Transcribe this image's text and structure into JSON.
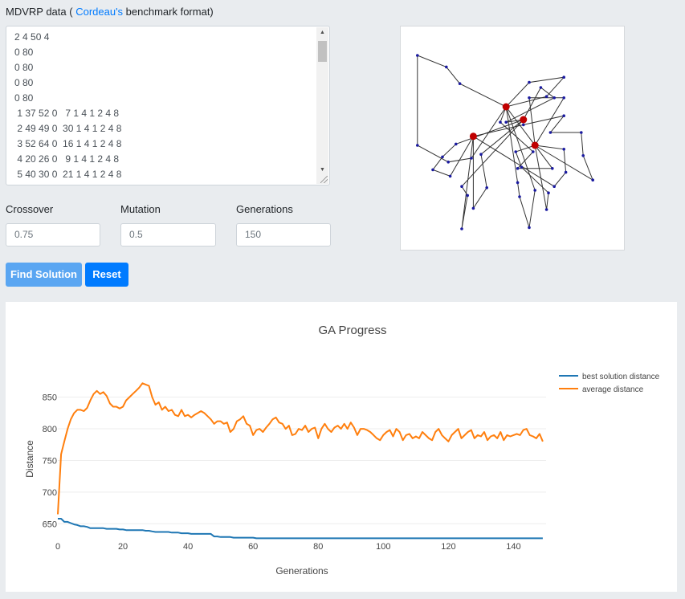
{
  "header": {
    "prefix": "MDVRP data (",
    "link": "Cordeau's",
    "suffix": " benchmark format)"
  },
  "data_lines": [
    "2 4 50 4",
    "0 80",
    "0 80",
    "0 80",
    "0 80",
    " 1 37 52 0   7 1 4 1 2 4 8",
    " 2 49 49 0  30 1 4 1 2 4 8",
    " 3 52 64 0  16 1 4 1 2 4 8",
    " 4 20 26 0   9 1 4 1 2 4 8",
    " 5 40 30 0  21 1 4 1 2 4 8"
  ],
  "fields": {
    "crossover": {
      "label": "Crossover",
      "value": "0.75"
    },
    "mutation": {
      "label": "Mutation",
      "value": "0.5"
    },
    "generations": {
      "label": "Generations",
      "value": "150"
    }
  },
  "buttons": {
    "find": "Find Solution",
    "reset": "Reset"
  },
  "colors": {
    "best": "#1f77b4",
    "average": "#ff7f0e",
    "depot": "#c00000",
    "customer": "#1a1aa0",
    "route": "#333333"
  },
  "map": {
    "depots": [
      {
        "x": 57,
        "y": 60
      },
      {
        "x": 31,
        "y": 73
      },
      {
        "x": 63,
        "y": 80
      },
      {
        "x": 48,
        "y": 50
      }
    ],
    "routes": [
      {
        "depot": 3,
        "points": [
          [
            45,
            62
          ],
          [
            62,
            85
          ],
          [
            54,
            98
          ],
          [
            72,
            98
          ],
          [
            48,
            50
          ]
        ]
      },
      {
        "depot": 3,
        "points": [
          [
            63,
            115
          ],
          [
            60,
            144
          ],
          [
            55,
            120
          ],
          [
            54,
            109
          ],
          [
            48,
            50
          ]
        ]
      },
      {
        "depot": 3,
        "points": [
          [
            30,
            90
          ],
          [
            18,
            93
          ],
          [
            2,
            80
          ],
          [
            2,
            10
          ],
          [
            17,
            19
          ],
          [
            24,
            32
          ],
          [
            48,
            50
          ]
        ]
      },
      {
        "depot": 3,
        "points": [
          [
            69,
            42
          ],
          [
            78,
            27
          ],
          [
            60,
            31
          ],
          [
            48,
            50
          ]
        ]
      },
      {
        "depot": 0,
        "points": [
          [
            22,
            79
          ],
          [
            15,
            89
          ],
          [
            10,
            99
          ],
          [
            19,
            104
          ],
          [
            31,
            73
          ]
        ]
      },
      {
        "depot": 0,
        "points": [
          [
            35,
            87
          ],
          [
            38,
            113
          ],
          [
            31,
            129
          ],
          [
            31,
            73
          ]
        ]
      },
      {
        "depot": 0,
        "points": [
          [
            48,
            62
          ],
          [
            73,
            43
          ],
          [
            66,
            35
          ],
          [
            57,
            60
          ]
        ]
      },
      {
        "depot": 0,
        "points": [
          [
            25,
            112
          ],
          [
            28,
            119
          ],
          [
            25,
            145
          ],
          [
            31,
            73
          ]
        ]
      },
      {
        "depot": 1,
        "points": [
          [
            57,
            64
          ],
          [
            78,
            57
          ],
          [
            71,
            70
          ],
          [
            87,
            70
          ],
          [
            88,
            88
          ],
          [
            93,
            107
          ],
          [
            63,
            80
          ]
        ]
      },
      {
        "depot": 1,
        "points": [
          [
            73,
            112
          ],
          [
            79,
            101
          ],
          [
            78,
            83
          ],
          [
            63,
            80
          ]
        ]
      },
      {
        "depot": 2,
        "points": [
          [
            53,
            85
          ],
          [
            56,
            97
          ],
          [
            70,
            117
          ],
          [
            69,
            130
          ],
          [
            63,
            80
          ]
        ]
      },
      {
        "depot": 2,
        "points": [
          [
            60,
            43
          ],
          [
            78,
            43
          ],
          [
            63,
            80
          ]
        ]
      }
    ]
  },
  "chart_data": {
    "type": "line",
    "title": "GA Progress",
    "xlabel": "Generations",
    "ylabel": "Distance",
    "xlim": [
      0,
      150
    ],
    "ylim": [
      625,
      880
    ],
    "xticks": [
      0,
      20,
      40,
      60,
      80,
      100,
      120,
      140
    ],
    "yticks": [
      650,
      700,
      750,
      800,
      850
    ],
    "legend_position": "top-right",
    "series": [
      {
        "name": "best solution distance",
        "x_start": 0,
        "values": [
          658,
          658,
          653,
          653,
          651,
          649,
          648,
          646,
          646,
          645,
          643,
          643,
          643,
          643,
          643,
          642,
          642,
          642,
          642,
          641,
          641,
          640,
          640,
          640,
          640,
          640,
          640,
          639,
          639,
          638,
          637,
          637,
          637,
          637,
          637,
          636,
          636,
          636,
          635,
          635,
          635,
          634,
          634,
          634,
          634,
          634,
          634,
          634,
          630,
          630,
          629,
          629,
          629,
          629,
          628,
          628,
          628,
          628,
          628,
          628,
          628,
          627,
          627,
          627,
          627,
          627,
          627,
          627,
          627,
          627,
          627,
          627,
          627,
          627,
          627,
          627,
          627,
          627,
          627,
          627,
          627,
          627,
          627,
          627,
          627,
          627,
          627,
          627,
          627,
          627,
          627,
          627,
          627,
          627,
          627,
          627,
          627,
          627,
          627,
          627,
          627,
          627,
          627,
          627,
          627,
          627,
          627,
          627,
          627,
          627,
          627,
          627,
          627,
          627,
          627,
          627,
          627,
          627,
          627,
          627,
          627,
          627,
          627,
          627,
          627,
          627,
          627,
          627,
          627,
          627,
          627,
          627,
          627,
          627,
          627,
          627,
          627,
          627,
          627,
          627,
          627,
          627,
          627,
          627,
          627,
          627,
          627,
          627,
          627,
          627
        ]
      },
      {
        "name": "average distance",
        "x_start": 0,
        "values": [
          665,
          760,
          780,
          800,
          815,
          825,
          830,
          830,
          828,
          833,
          845,
          855,
          860,
          855,
          858,
          852,
          840,
          835,
          835,
          832,
          835,
          845,
          850,
          855,
          860,
          865,
          872,
          870,
          868,
          850,
          838,
          842,
          830,
          835,
          828,
          830,
          822,
          820,
          830,
          820,
          822,
          818,
          822,
          825,
          828,
          825,
          820,
          815,
          808,
          812,
          812,
          808,
          810,
          795,
          800,
          812,
          815,
          820,
          808,
          805,
          790,
          798,
          800,
          795,
          802,
          808,
          815,
          818,
          810,
          808,
          800,
          805,
          790,
          792,
          800,
          798,
          805,
          795,
          800,
          802,
          785,
          800,
          808,
          800,
          795,
          802,
          805,
          800,
          808,
          800,
          810,
          802,
          790,
          800,
          800,
          798,
          795,
          790,
          785,
          782,
          790,
          795,
          798,
          788,
          800,
          795,
          782,
          790,
          792,
          785,
          788,
          785,
          795,
          790,
          785,
          782,
          795,
          800,
          790,
          785,
          780,
          790,
          795,
          800,
          785,
          790,
          795,
          798,
          785,
          790,
          788,
          795,
          782,
          788,
          790,
          785,
          795,
          782,
          790,
          788,
          790,
          792,
          790,
          798,
          800,
          790,
          788,
          785,
          792,
          780
        ]
      }
    ]
  }
}
